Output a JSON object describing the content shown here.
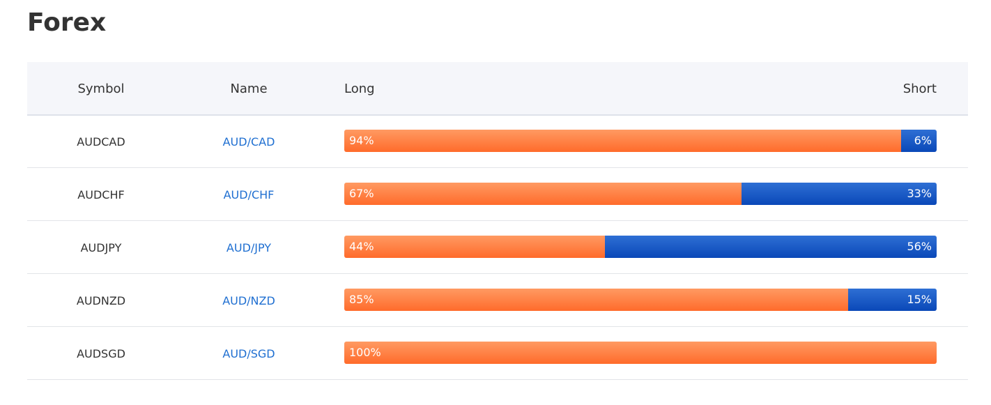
{
  "header": {
    "title": "Forex"
  },
  "table": {
    "columns": [
      "Symbol",
      "Name",
      "Long",
      "Short"
    ],
    "rows": [
      {
        "symbol": "AUDCAD",
        "name": "AUD/CAD",
        "long": 94,
        "long_label": "94%",
        "short": 6,
        "short_label": "6%"
      },
      {
        "symbol": "AUDCHF",
        "name": "AUD/CHF",
        "long": 67,
        "long_label": "67%",
        "short": 33,
        "short_label": "33%"
      },
      {
        "symbol": "AUDJPY",
        "name": "AUD/JPY",
        "long": 44,
        "long_label": "44%",
        "short": 56,
        "short_label": "56%"
      },
      {
        "symbol": "AUDNZD",
        "name": "AUD/NZD",
        "long": 85,
        "long_label": "85%",
        "short": 15,
        "short_label": "15%"
      },
      {
        "symbol": "AUDSGD",
        "name": "AUD/SGD",
        "long": 100,
        "long_label": "100%"
      }
    ]
  }
}
